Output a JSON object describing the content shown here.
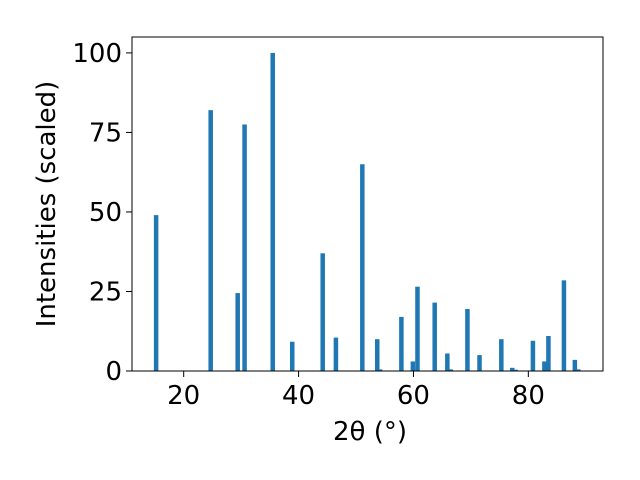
{
  "chart_data": {
    "type": "bar",
    "title": "",
    "xlabel": "2θ (°)",
    "ylabel": "Intensities (scaled)",
    "xlim": [
      11,
      93
    ],
    "ylim": [
      0,
      105
    ],
    "xticks": [
      20,
      40,
      60,
      80
    ],
    "yticks": [
      0,
      25,
      50,
      75,
      100
    ],
    "grid": false,
    "bar_color": "#1f77b4",
    "peaks": [
      {
        "x": 15.2,
        "y": 49
      },
      {
        "x": 24.7,
        "y": 82
      },
      {
        "x": 29.4,
        "y": 24.5
      },
      {
        "x": 30.6,
        "y": 77.5
      },
      {
        "x": 35.5,
        "y": 100
      },
      {
        "x": 38.9,
        "y": 9.2
      },
      {
        "x": 44.2,
        "y": 37
      },
      {
        "x": 46.5,
        "y": 10.5
      },
      {
        "x": 51.1,
        "y": 65
      },
      {
        "x": 53.7,
        "y": 10
      },
      {
        "x": 54.2,
        "y": 0.5
      },
      {
        "x": 57.9,
        "y": 17
      },
      {
        "x": 59.9,
        "y": 3
      },
      {
        "x": 60.7,
        "y": 26.5
      },
      {
        "x": 63.7,
        "y": 21.5
      },
      {
        "x": 65.9,
        "y": 5.5
      },
      {
        "x": 66.5,
        "y": 0.5
      },
      {
        "x": 69.4,
        "y": 19.5
      },
      {
        "x": 71.5,
        "y": 5
      },
      {
        "x": 75.3,
        "y": 10
      },
      {
        "x": 77.2,
        "y": 1
      },
      {
        "x": 77.8,
        "y": 0.4
      },
      {
        "x": 80.8,
        "y": 9.5
      },
      {
        "x": 82.8,
        "y": 3
      },
      {
        "x": 83.5,
        "y": 11
      },
      {
        "x": 86.2,
        "y": 28.5
      },
      {
        "x": 88.1,
        "y": 3.5
      },
      {
        "x": 88.7,
        "y": 0.5
      }
    ]
  }
}
